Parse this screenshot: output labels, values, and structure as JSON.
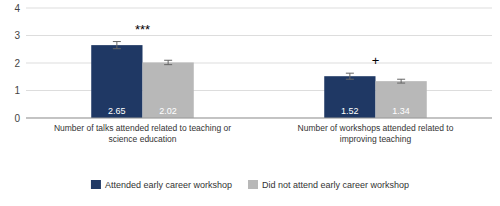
{
  "chart_data": {
    "type": "bar",
    "categories": [
      "Number of talks attended related to teaching or\nscience education",
      "Number of workshops attended related to\nimproving teaching"
    ],
    "series": [
      {
        "name": "Attended early career workshop",
        "color": "#1f3864",
        "values": [
          2.65,
          1.52
        ],
        "errors": [
          0.13,
          0.11
        ]
      },
      {
        "name": "Did not attend early career workshop",
        "color": "#b8b8b8",
        "values": [
          2.02,
          1.34
        ],
        "errors": [
          0.08,
          0.07
        ]
      }
    ],
    "annotations": [
      "***",
      "+"
    ],
    "ylim": [
      0,
      4
    ],
    "yticks": [
      0,
      1,
      2,
      3,
      4
    ],
    "grid": true,
    "data_labels": true,
    "legend": "bottom"
  }
}
